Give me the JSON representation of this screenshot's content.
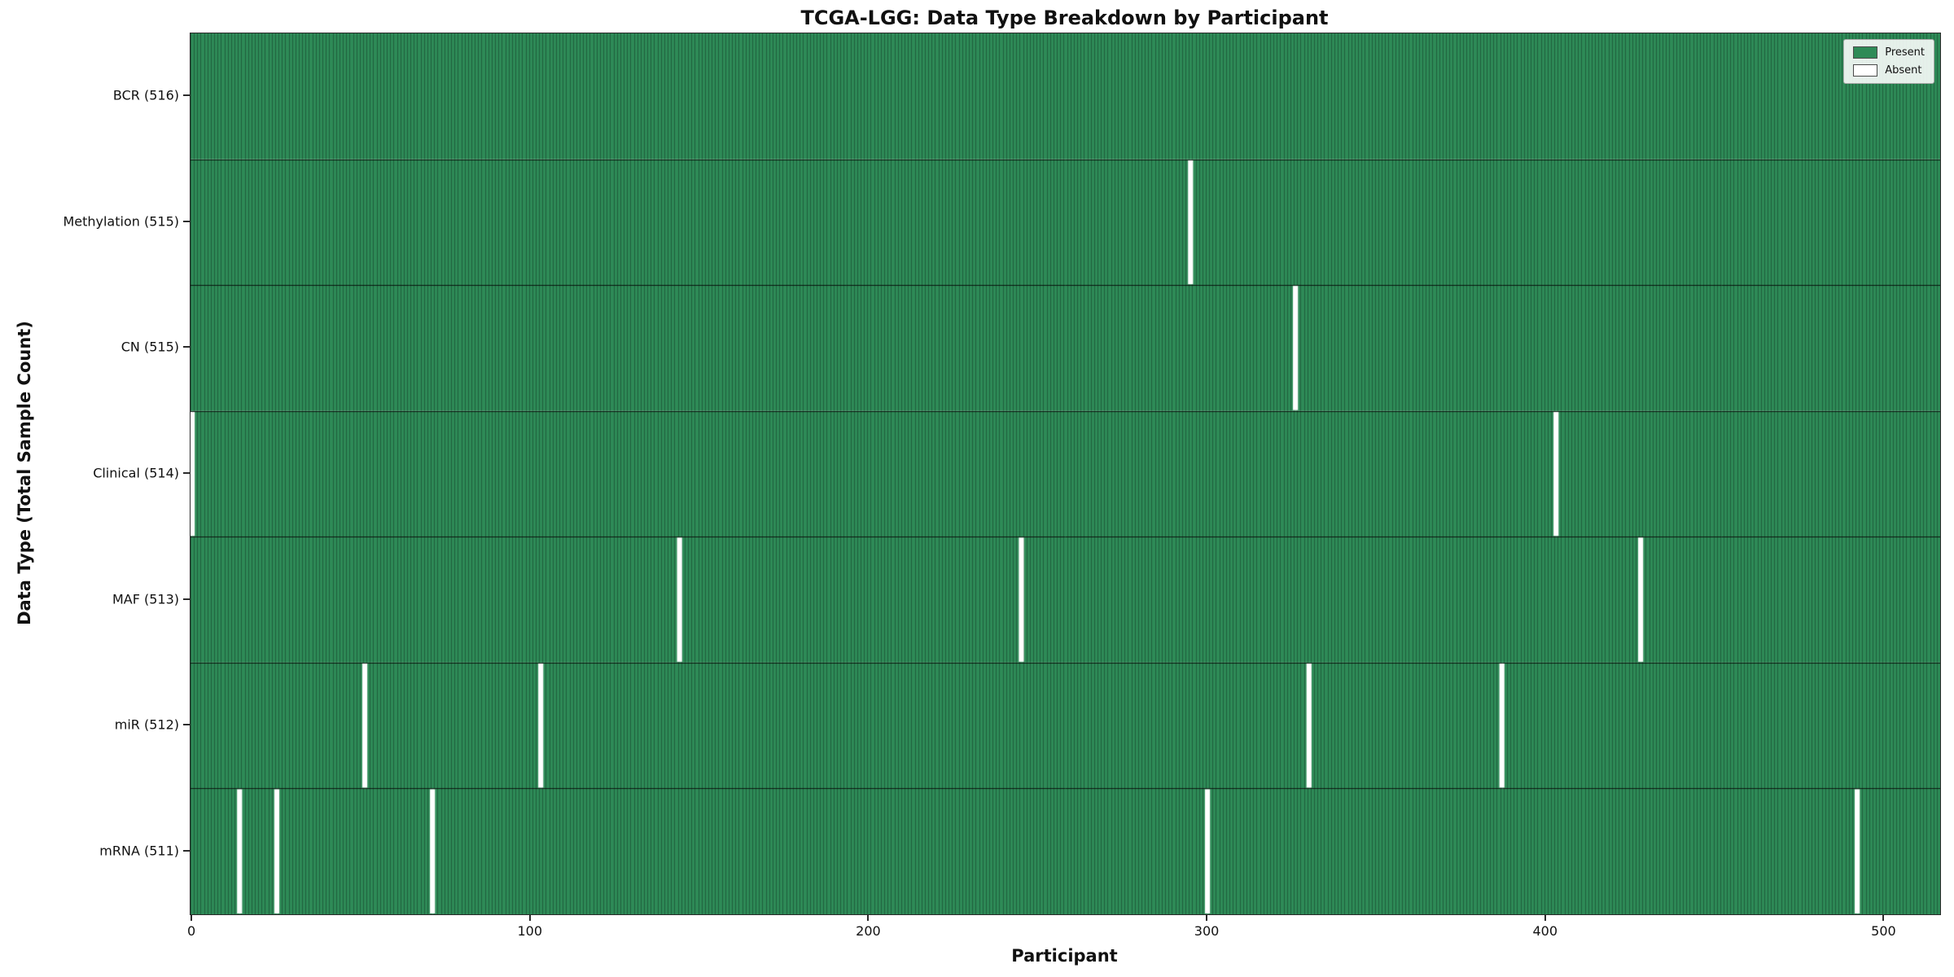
{
  "chart_data": {
    "type": "heatmap",
    "title": "TCGA-LGG: Data Type Breakdown by Participant",
    "xlabel": "Participant",
    "ylabel": "Data Type (Total Sample Count)",
    "x_ticks": [
      0,
      100,
      200,
      300,
      400,
      500
    ],
    "n_participants": 516,
    "legend": [
      {
        "label": "Present",
        "color": "#2e8b57"
      },
      {
        "label": "Absent",
        "color": "#ffffff"
      }
    ],
    "colors": {
      "present": "#2e8b57",
      "absent": "#ffffff",
      "cell_edge": "rgba(0,0,0,0.32)",
      "row_separator": "rgba(0,0,0,0.85)"
    },
    "rows": [
      {
        "label": "BCR (516)",
        "total": 516,
        "absent_participants": []
      },
      {
        "label": "Methylation (515)",
        "total": 515,
        "absent_participants": [
          295
        ]
      },
      {
        "label": "CN (515)",
        "total": 515,
        "absent_participants": [
          326
        ]
      },
      {
        "label": "Clinical (514)",
        "total": 514,
        "absent_participants": [
          0,
          403
        ]
      },
      {
        "label": "MAF (513)",
        "total": 513,
        "absent_participants": [
          144,
          245,
          428
        ]
      },
      {
        "label": "miR (512)",
        "total": 512,
        "absent_participants": [
          51,
          103,
          330,
          387
        ]
      },
      {
        "label": "mRNA (511)",
        "total": 511,
        "absent_participants": [
          14,
          25,
          71,
          300,
          492
        ]
      }
    ]
  }
}
